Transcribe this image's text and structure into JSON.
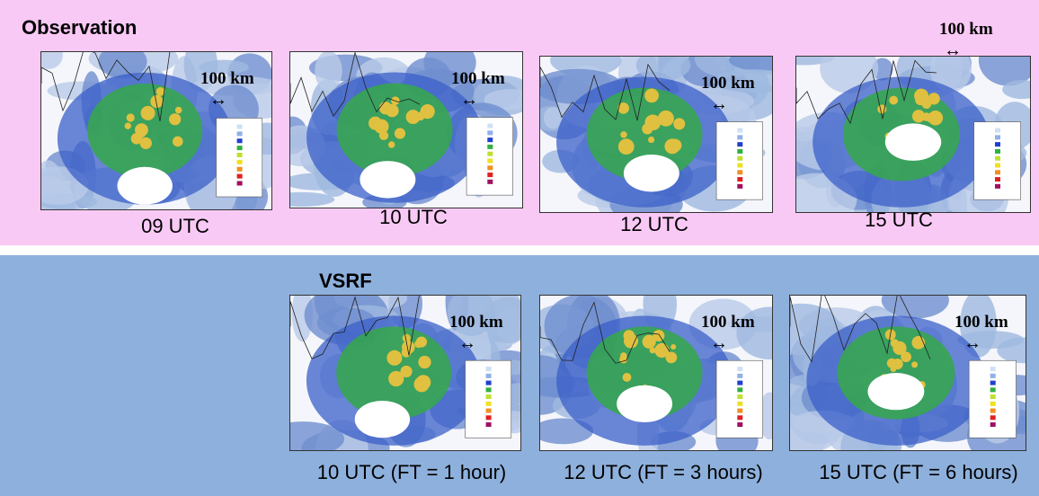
{
  "observation": {
    "title": "Observation",
    "panels": [
      {
        "scale": "100 km",
        "time": "09 UTC"
      },
      {
        "scale": "100 km",
        "time": "10 UTC"
      },
      {
        "scale": "100 km",
        "time": "12 UTC"
      },
      {
        "scale": "100 km",
        "time": "15 UTC"
      }
    ]
  },
  "vsrf": {
    "title": "VSRF",
    "panels": [
      {
        "scale": "100 km",
        "time": "10 UTC (FT = 1 hour)"
      },
      {
        "scale": "100 km",
        "time": "12 UTC (FT = 3 hours)"
      },
      {
        "scale": "100 km",
        "time": "15 UTC (FT = 6 hours)"
      }
    ]
  }
}
